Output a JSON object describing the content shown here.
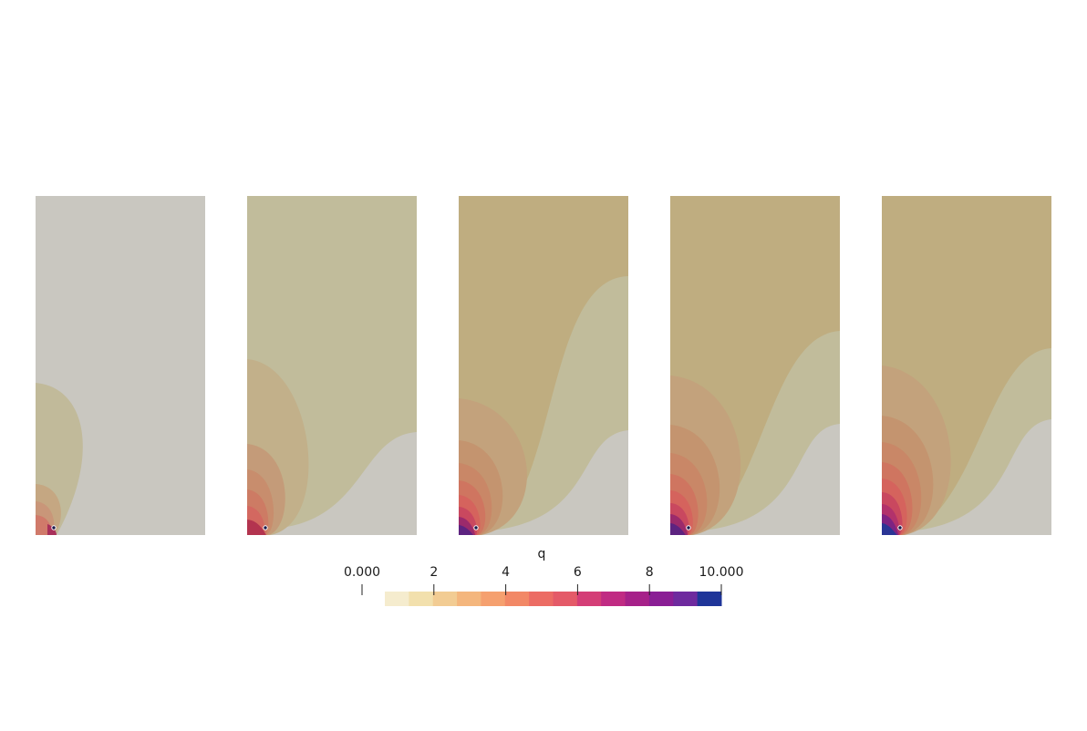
{
  "colorbar": {
    "title": "q",
    "min_label": "0.000",
    "max_label": "10.000",
    "range": [
      0,
      10
    ],
    "ticks": [
      {
        "value": 0,
        "label": "0.000"
      },
      {
        "value": 2,
        "label": "2"
      },
      {
        "value": 4,
        "label": "4"
      },
      {
        "value": 6,
        "label": "6"
      },
      {
        "value": 8,
        "label": "8"
      },
      {
        "value": 10,
        "label": "10.000"
      }
    ],
    "colors": [
      "#f5ecce",
      "#f2e0ad",
      "#f2cc93",
      "#f4b67d",
      "#f5a06f",
      "#f28866",
      "#ec6c64",
      "#e45a68",
      "#d43e77",
      "#c02b83",
      "#a62189",
      "#8a1e95",
      "#6e2a9e",
      "#1f3599"
    ]
  },
  "panels": [
    {
      "id": "panel-1",
      "background": "#c9c7c0",
      "regions": [
        "#c1ba9a",
        "#c5a782",
        "#c99679",
        "#d07a6a",
        "#a8305a"
      ]
    },
    {
      "id": "panel-2",
      "background": "#c9c7c0",
      "regions": [
        "#c1bc9b",
        "#c2b08a",
        "#c49b79",
        "#c88d6d",
        "#cd7b64",
        "#d36860",
        "#b3344f"
      ]
    },
    {
      "id": "panel-3",
      "background": "#c9c7c0",
      "regions": [
        "#c1bc9b",
        "#bfad80",
        "#c3a27c",
        "#c4946f",
        "#c98767",
        "#cf7560",
        "#d5635d",
        "#c9485f",
        "#9b2a6b",
        "#5d2380"
      ]
    },
    {
      "id": "panel-4",
      "background": "#c9c7c0",
      "regions": [
        "#c1bc9b",
        "#bfad80",
        "#c3a27c",
        "#c4946f",
        "#c98767",
        "#cf7560",
        "#d5635d",
        "#c9485f",
        "#9b2a6b",
        "#5d2380"
      ]
    },
    {
      "id": "panel-5",
      "background": "#c9c7c0",
      "regions": [
        "#c1bc9b",
        "#bfad80",
        "#c3a27c",
        "#c4946f",
        "#c98767",
        "#cf7560",
        "#d5635d",
        "#c9485f",
        "#b2326b",
        "#7e2382",
        "#2a3595"
      ]
    }
  ]
}
